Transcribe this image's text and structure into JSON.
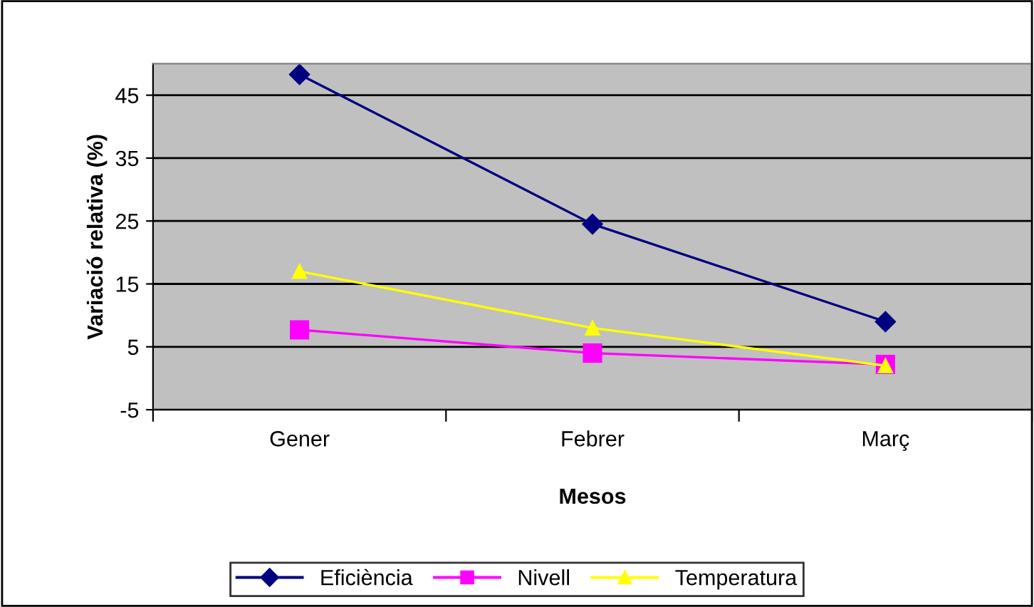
{
  "chart_data": {
    "type": "line",
    "xlabel": "Mesos",
    "ylabel": "Variació relativa (%)",
    "categories": [
      "Gener",
      "Febrer",
      "Març"
    ],
    "series": [
      {
        "name": "Eficiència",
        "color": "#000080",
        "values": [
          48.3,
          24.5,
          9
        ],
        "marker": "diamond"
      },
      {
        "name": "Nivell",
        "color": "#ff00ff",
        "values": [
          7.7,
          4,
          2.2
        ],
        "marker": "square"
      },
      {
        "name": "Temperatura",
        "color": "#ffff00",
        "values": [
          17,
          8,
          2
        ],
        "marker": "triangle"
      }
    ],
    "ylim": [
      -5,
      50
    ],
    "yticks": [
      -5,
      5,
      15,
      25,
      35,
      45
    ],
    "grid": "y",
    "legend": "bottom"
  }
}
